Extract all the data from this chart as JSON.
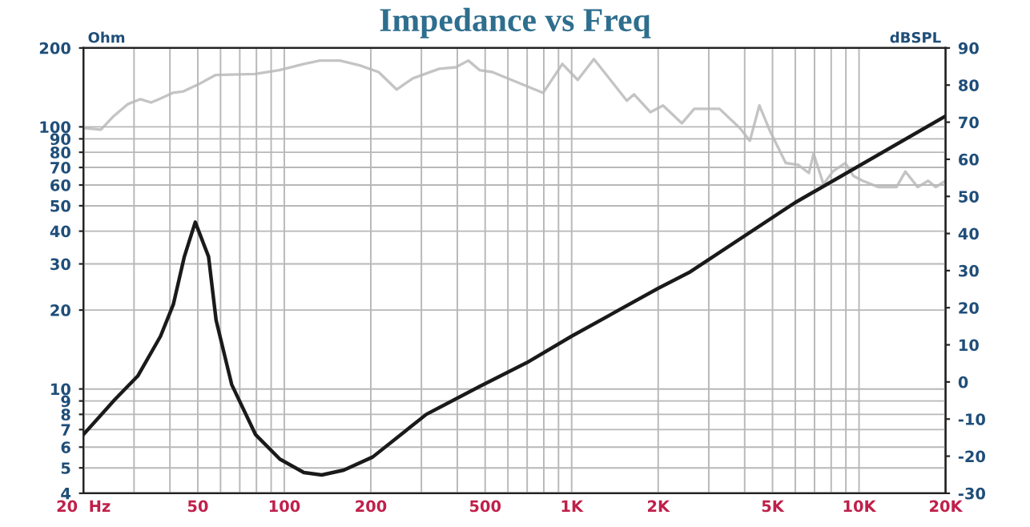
{
  "chart_data": {
    "type": "line",
    "title": "Impedance vs Freq",
    "ylabel": "Ohm",
    "y2label": "dBSPL",
    "log": "xy",
    "grid": true,
    "legend": false,
    "xlim": [
      20,
      20000
    ],
    "ylim": [
      4,
      200
    ],
    "y2lim": [
      -30,
      90
    ],
    "xticks": [
      {
        "value": 20,
        "label": "20  Hz"
      },
      {
        "value": 30,
        "label": null
      },
      {
        "value": 40,
        "label": null
      },
      50,
      {
        "value": 60,
        "label": null
      },
      {
        "value": 70,
        "label": null
      },
      {
        "value": 80,
        "label": null
      },
      {
        "value": 90,
        "label": null
      },
      100,
      200,
      {
        "value": 300,
        "label": null
      },
      {
        "value": 400,
        "label": null
      },
      500,
      {
        "value": 600,
        "label": null
      },
      {
        "value": 700,
        "label": null
      },
      {
        "value": 800,
        "label": null
      },
      {
        "value": 900,
        "label": null
      },
      {
        "value": 1000,
        "label": "1K"
      },
      {
        "value": 2000,
        "label": "2K"
      },
      {
        "value": 3000,
        "label": null
      },
      {
        "value": 4000,
        "label": null
      },
      {
        "value": 5000,
        "label": "5K"
      },
      {
        "value": 6000,
        "label": null
      },
      {
        "value": 7000,
        "label": null
      },
      {
        "value": 8000,
        "label": null
      },
      {
        "value": 9000,
        "label": null
      },
      {
        "value": 10000,
        "label": "10K"
      },
      {
        "value": 20000,
        "label": "20K"
      }
    ],
    "yticks": [
      4,
      5,
      6,
      7,
      8,
      9,
      10,
      20,
      30,
      40,
      50,
      60,
      70,
      80,
      90,
      100,
      200
    ],
    "y2ticks": [
      -30,
      -20,
      -10,
      0,
      10,
      20,
      30,
      40,
      50,
      60,
      70,
      80,
      90
    ],
    "series": [
      {
        "color": "#1a1a1a",
        "x": [
          20,
          25.7,
          30.9,
          37.1,
          41.1,
          44.9,
          49,
          54.5,
          57.9,
          65.6,
          79.4,
          96.5,
          117,
          135,
          161,
          203,
          312,
          477,
          698,
          1000,
          2000,
          2560,
          5990,
          20000
        ],
        "values": [
          6.7,
          9.1,
          11.2,
          15.9,
          21,
          32,
          43.3,
          32,
          18.3,
          10.4,
          6.7,
          5.4,
          4.8,
          4.7,
          4.9,
          5.5,
          8.0,
          10.2,
          12.6,
          15.9,
          24.2,
          27.8,
          51.4,
          110
        ]
      },
      {
        "color": "#c4c4c4",
        "axis": "y2",
        "x": [
          20,
          23,
          25.3,
          28.6,
          31.6,
          34.4,
          36.7,
          40.9,
          44.6,
          51.1,
          57.6,
          79,
          96,
          117,
          133,
          156,
          183,
          213,
          246,
          280,
          346,
          395,
          437,
          479,
          530,
          796,
          928,
          1050,
          1195,
          1556,
          1649,
          1880,
          2080,
          2420,
          2670,
          3270,
          3850,
          4170,
          4500,
          4900,
          5560,
          6140,
          6690,
          6950,
          7520,
          8100,
          8960,
          9560,
          10300,
          11700,
          13500,
          14500,
          16000,
          17400,
          18500,
          20000
        ],
        "values": [
          68.4,
          68,
          71.4,
          74.9,
          76.2,
          75.3,
          76.2,
          77.9,
          78.3,
          80.5,
          82.7,
          83,
          84,
          85.7,
          86.6,
          86.6,
          85.3,
          83.5,
          78.8,
          81.8,
          84.4,
          84.8,
          86.6,
          84,
          83.5,
          77.9,
          85.7,
          81.4,
          87,
          75.8,
          77.5,
          72.7,
          74.5,
          69.7,
          73.6,
          73.6,
          68.4,
          65,
          74.5,
          67.6,
          59,
          58.5,
          56.3,
          61.5,
          53.3,
          56.7,
          59,
          55.5,
          54.2,
          52.5,
          52.5,
          56.7,
          52.5,
          54.2,
          52.5,
          54.2
        ]
      }
    ]
  }
}
